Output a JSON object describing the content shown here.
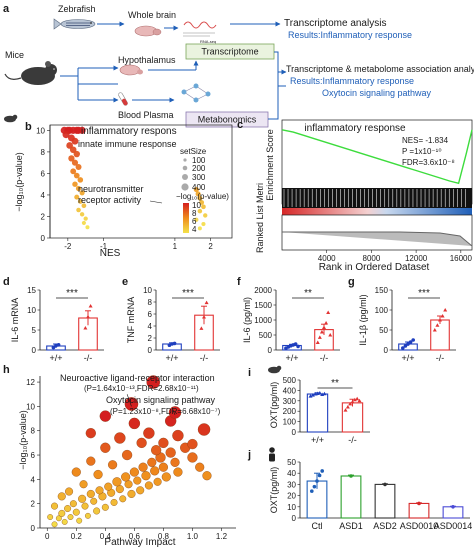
{
  "panel_a": {
    "label": "a",
    "zebrafish": "Zebrafish",
    "whole_brain": "Whole brain",
    "rna_seq": "RNA-seq",
    "mice": "Mice",
    "hypothalamus": "Hypothalamus",
    "blood_plasma": "Blood Plasma",
    "transcriptome_box": "Transcriptome",
    "metabonomics_box": "Metabonomics",
    "result1_title": "Transcriptome analysis",
    "result1_body": "Results:Inflammatory response",
    "result2_title": "Transcriptome & metabolome association analysis",
    "result2_line1": "Results:Inflammatory response",
    "result2_line2": "Oxytocin signaling pathway",
    "colors": {
      "accent": "#1f5fb8",
      "transcriptome_fill": "#eaf3df",
      "transcriptome_border": "#7aa65a",
      "metabonomics_fill": "#ece6f3",
      "metabonomics_border": "#8c7ab0"
    }
  },
  "chart_data": [
    {
      "id": "b",
      "type": "scatter",
      "label": "b",
      "xlabel": "NES",
      "ylabel": "−log₁₀(p-value)",
      "xticks": [
        "-2",
        "-1",
        "1",
        "2"
      ],
      "xtick_values": [
        -2,
        -1,
        1,
        2
      ],
      "yticks": [
        "0",
        "2",
        "4",
        "6",
        "8",
        "10"
      ],
      "xlim": [
        -2.5,
        2.6
      ],
      "ylim": [
        0,
        10.5
      ],
      "legend_size_title": "setSize",
      "legend_sizes": [
        "100",
        "200",
        "300",
        "400"
      ],
      "legend_color_title": "−log₁₀(p-value)",
      "legend_color_ticks": [
        "10",
        "8",
        "6",
        "4"
      ],
      "annotations": [
        "inflammatory respons",
        "innate immune response",
        "neurotransmitter",
        "receptor activity"
      ],
      "points_negative": [
        [
          -2.1,
          10
        ],
        [
          -2.0,
          10
        ],
        [
          -1.95,
          10
        ],
        [
          -1.85,
          10
        ],
        [
          -1.75,
          10
        ],
        [
          -1.7,
          10
        ],
        [
          -1.6,
          10
        ],
        [
          -2.05,
          9.6
        ],
        [
          -1.9,
          9.3
        ],
        [
          -1.8,
          9.0
        ],
        [
          -1.95,
          8.6
        ],
        [
          -1.85,
          8.2
        ],
        [
          -1.75,
          7.8
        ],
        [
          -1.9,
          7.4
        ],
        [
          -1.8,
          7.0
        ],
        [
          -1.7,
          6.6
        ],
        [
          -1.85,
          6.2
        ],
        [
          -1.75,
          5.8
        ],
        [
          -1.65,
          5.4
        ],
        [
          -1.8,
          5.0
        ],
        [
          -1.7,
          4.6
        ],
        [
          -1.6,
          4.2
        ],
        [
          -1.75,
          3.8
        ],
        [
          -1.65,
          3.4
        ],
        [
          -1.55,
          3.0
        ],
        [
          -1.7,
          2.6
        ],
        [
          -1.6,
          2.2
        ],
        [
          -1.5,
          1.8
        ],
        [
          -1.55,
          1.4
        ],
        [
          -1.45,
          1.0
        ]
      ],
      "points_positive": [
        [
          1.6,
          4.5
        ],
        [
          1.65,
          4.1
        ],
        [
          1.7,
          3.7
        ],
        [
          1.75,
          3.3
        ],
        [
          1.8,
          2.9
        ],
        [
          1.7,
          2.5
        ],
        [
          1.85,
          2.1
        ],
        [
          1.6,
          1.7
        ],
        [
          1.8,
          1.3
        ],
        [
          1.7,
          0.9
        ]
      ]
    },
    {
      "id": "c",
      "type": "line",
      "label": "c",
      "title": "inflammatory response",
      "ylabel_top": "Enrichment Score",
      "ylabel_bottom": "Ranked List Metri",
      "xlabel": "Rank in Ordered Dataset",
      "xticks": [
        "4000",
        "8000",
        "12000",
        "16000"
      ],
      "xtick_values": [
        4000,
        8000,
        12000,
        16000
      ],
      "xlim": [
        0,
        17000
      ],
      "ylim": [
        -0.5,
        0.05
      ],
      "stats": [
        "NES= -1.834",
        "P =1x10⁻¹⁰",
        "FDR=3.6x10⁻⁸"
      ],
      "curve_x": [
        0,
        1000,
        2000,
        3000,
        4000,
        5000,
        6000,
        7000,
        8000,
        9000,
        10000,
        11000,
        12000,
        13000,
        14000,
        15000,
        15800,
        16500,
        17000
      ],
      "curve_y": [
        0,
        -0.02,
        -0.05,
        -0.08,
        -0.11,
        -0.14,
        -0.17,
        -0.2,
        -0.23,
        -0.26,
        -0.29,
        -0.32,
        -0.35,
        -0.38,
        -0.41,
        -0.44,
        -0.46,
        -0.2,
        0
      ],
      "colors": {
        "curve": "#3ddc3d",
        "heat_high": "#d62828",
        "heat_low": "#1f5fb8"
      }
    },
    {
      "id": "d",
      "type": "bar",
      "label": "d",
      "ylabel": "IL-6 mRNA",
      "categories": [
        "+/+",
        "-/-"
      ],
      "values": [
        1.0,
        8.0
      ],
      "errors": [
        0.5,
        1.8
      ],
      "points": [
        [
          0.6,
          1.1,
          1.3
        ],
        [
          5.5,
          8.3,
          11.0
        ]
      ],
      "ylim": [
        0,
        15
      ],
      "yticks": [
        "0",
        "5",
        "10",
        "15"
      ],
      "significance": "***",
      "colors": {
        "wt": "#1f3fbf",
        "ko": "#e23333"
      }
    },
    {
      "id": "e",
      "type": "bar",
      "label": "e",
      "ylabel": "TNF mRNA",
      "categories": [
        "+/+",
        "-/-"
      ],
      "values": [
        1.0,
        5.8
      ],
      "errors": [
        0.2,
        1.5
      ],
      "points": [
        [
          0.8,
          1.0,
          1.1
        ],
        [
          3.6,
          5.5,
          7.9
        ]
      ],
      "ylim": [
        0,
        10
      ],
      "yticks": [
        "0",
        "2",
        "4",
        "6",
        "8",
        "10"
      ],
      "significance": "***",
      "colors": {
        "wt": "#1f3fbf",
        "ko": "#e23333"
      }
    },
    {
      "id": "f",
      "type": "bar",
      "label": "f",
      "ylabel": "IL-6 (pg/ml)",
      "categories": [
        "+/+",
        "-/-"
      ],
      "values": [
        150,
        680
      ],
      "errors": [
        40,
        180
      ],
      "points": [
        [
          60,
          100,
          140,
          170,
          200,
          120
        ],
        [
          250,
          420,
          600,
          750,
          900,
          1250,
          500
        ]
      ],
      "ylim": [
        0,
        2000
      ],
      "yticks": [
        "0",
        "500",
        "1000",
        "1500",
        "2000"
      ],
      "significance": "**",
      "colors": {
        "wt": "#1f3fbf",
        "ko": "#e23333"
      }
    },
    {
      "id": "g",
      "type": "bar",
      "label": "g",
      "ylabel": "IL-1β (pg/ml)",
      "categories": [
        "+/+",
        "-/-"
      ],
      "values": [
        15,
        75
      ],
      "errors": [
        5,
        10
      ],
      "points": [
        [
          5,
          10,
          15,
          20,
          25
        ],
        [
          50,
          62,
          75,
          85,
          100
        ]
      ],
      "ylim": [
        0,
        150
      ],
      "yticks": [
        "0",
        "50",
        "100",
        "150"
      ],
      "significance": "***",
      "colors": {
        "wt": "#1f3fbf",
        "ko": "#e23333"
      }
    },
    {
      "id": "h",
      "type": "scatter",
      "label": "h",
      "xlabel": "Pathway Impact",
      "ylabel": "−log₁₀(p-value)",
      "xticks": [
        "0",
        "0.2",
        "0.4",
        "0.6",
        "0.8",
        "1.0",
        "1.2"
      ],
      "xtick_values": [
        0,
        0.2,
        0.4,
        0.6,
        0.8,
        1.0,
        1.2
      ],
      "yticks": [
        "0",
        "2",
        "4",
        "6",
        "8",
        "10",
        "12"
      ],
      "xlim": [
        -0.05,
        1.3
      ],
      "ylim": [
        0,
        12.5
      ],
      "annotation1_title": "Neuroactive ligand-receptor interaction",
      "annotation1_stats": "(P=1.64x10⁻¹³,FDR=2.68x10⁻¹¹)",
      "annotation2_title": "Oxytocin signaling pathway",
      "annotation2_stats": "(P=1.23x10⁻⁸,FDR=6.68x10⁻⁷)",
      "points": [
        [
          0.05,
          0.3,
          5
        ],
        [
          0.08,
          0.8,
          5
        ],
        [
          0.1,
          1.2,
          6
        ],
        [
          0.12,
          0.5,
          5
        ],
        [
          0.14,
          1.6,
          6
        ],
        [
          0.16,
          0.9,
          5
        ],
        [
          0.18,
          2.0,
          6
        ],
        [
          0.2,
          1.3,
          6
        ],
        [
          0.22,
          0.6,
          5
        ],
        [
          0.24,
          2.4,
          7
        ],
        [
          0.26,
          1.8,
          6
        ],
        [
          0.28,
          1.0,
          5
        ],
        [
          0.3,
          2.8,
          7
        ],
        [
          0.32,
          2.2,
          6
        ],
        [
          0.34,
          1.4,
          6
        ],
        [
          0.36,
          3.1,
          7
        ],
        [
          0.38,
          2.6,
          7
        ],
        [
          0.4,
          1.7,
          6
        ],
        [
          0.42,
          3.4,
          7
        ],
        [
          0.44,
          2.9,
          7
        ],
        [
          0.46,
          2.1,
          6
        ],
        [
          0.48,
          3.8,
          8
        ],
        [
          0.5,
          3.2,
          7
        ],
        [
          0.52,
          2.4,
          6
        ],
        [
          0.54,
          4.2,
          8
        ],
        [
          0.56,
          3.6,
          7
        ],
        [
          0.58,
          2.8,
          7
        ],
        [
          0.6,
          4.6,
          8
        ],
        [
          0.62,
          3.9,
          7
        ],
        [
          0.64,
          3.1,
          7
        ],
        [
          0.66,
          5.0,
          8
        ],
        [
          0.68,
          4.3,
          8
        ],
        [
          0.7,
          3.5,
          7
        ],
        [
          0.72,
          5.4,
          8
        ],
        [
          0.74,
          4.7,
          8
        ],
        [
          0.76,
          3.8,
          7
        ],
        [
          0.78,
          5.8,
          9
        ],
        [
          0.8,
          5.0,
          8
        ],
        [
          0.82,
          4.2,
          8
        ],
        [
          0.85,
          6.2,
          9
        ],
        [
          0.88,
          5.4,
          8
        ],
        [
          0.9,
          4.6,
          8
        ],
        [
          0.95,
          6.6,
          9
        ],
        [
          1.0,
          5.8,
          9
        ],
        [
          1.05,
          5.0,
          8
        ],
        [
          1.1,
          4.3,
          8
        ],
        [
          0.15,
          3.0,
          7
        ],
        [
          0.25,
          3.6,
          7
        ],
        [
          0.35,
          4.4,
          8
        ],
        [
          0.45,
          5.2,
          8
        ],
        [
          0.55,
          6.0,
          9
        ],
        [
          0.65,
          7.0,
          9
        ],
        [
          0.75,
          6.4,
          9
        ],
        [
          0.3,
          5.5,
          8
        ],
        [
          0.4,
          6.6,
          9
        ],
        [
          0.5,
          7.4,
          10
        ],
        [
          0.2,
          4.6,
          8
        ],
        [
          0.1,
          2.6,
          7
        ],
        [
          0.05,
          1.8,
          6
        ],
        [
          0.02,
          0.9,
          5
        ],
        [
          0.6,
          8.6,
          10
        ],
        [
          0.7,
          7.8,
          10
        ],
        [
          0.8,
          7.0,
          9
        ],
        [
          0.9,
          7.6,
          10
        ],
        [
          1.0,
          6.9,
          9
        ],
        [
          0.85,
          8.8,
          10
        ],
        [
          0.73,
          12.0,
          12
        ],
        [
          0.58,
          10.2,
          12
        ],
        [
          0.88,
          9.5,
          11
        ],
        [
          1.08,
          8.1,
          11
        ],
        [
          0.4,
          9.2,
          10
        ],
        [
          0.3,
          7.8,
          9
        ]
      ],
      "colors": {
        "high": "#d41f1f",
        "mid": "#ef8c1c",
        "low": "#f4e24a"
      }
    },
    {
      "id": "i",
      "type": "bar",
      "label": "i",
      "ylabel": "OXT(pg/ml)",
      "categories": [
        "+/+",
        "-/-"
      ],
      "values": [
        365,
        280
      ],
      "errors": [
        12,
        35
      ],
      "points": [
        [
          345,
          355,
          365,
          370,
          375,
          360,
          368
        ],
        [
          210,
          240,
          270,
          290,
          310,
          320,
          300
        ]
      ],
      "ylim": [
        0,
        500
      ],
      "yticks": [
        "0",
        "100",
        "200",
        "300",
        "400",
        "500"
      ],
      "significance": "**",
      "colors": {
        "wt": "#1f3fbf",
        "ko": "#e23333"
      }
    },
    {
      "id": "j",
      "type": "bar",
      "label": "j",
      "ylabel": "OXT(pg/ml)",
      "categories": [
        "Ctl",
        "ASD1",
        "ASD2",
        "ASD0010",
        "ASD0014"
      ],
      "values": [
        33,
        37.5,
        30,
        13,
        10
      ],
      "errors": [
        7,
        0.8,
        0.5,
        0.5,
        0.5
      ],
      "points": [
        [
          24,
          28,
          33,
          38,
          42
        ],
        [
          37.5
        ],
        [
          30
        ],
        [
          13
        ],
        [
          10
        ]
      ],
      "ylim": [
        0,
        50
      ],
      "yticks": [
        "0",
        "10",
        "20",
        "30",
        "40",
        "50"
      ],
      "colors": {
        "bars": [
          "#1f5fb8",
          "#2ca02c",
          "#333333",
          "#d62728",
          "#4b4bd6"
        ]
      }
    }
  ]
}
